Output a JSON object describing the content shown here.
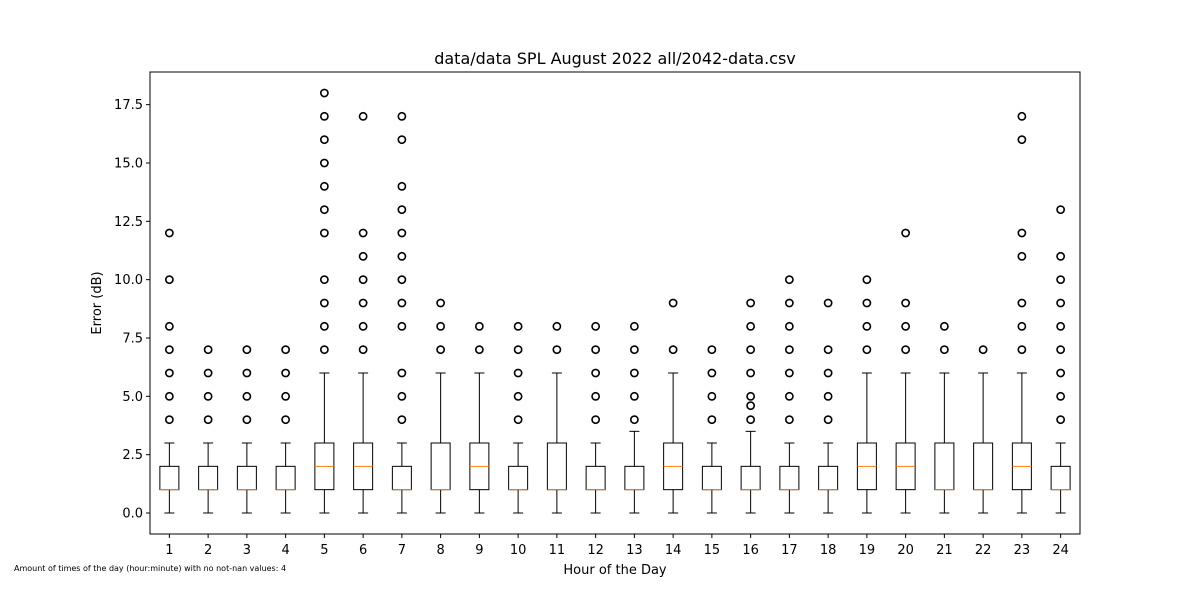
{
  "chart_data": {
    "type": "box",
    "title": "data/data SPL August 2022 all/2042-data.csv",
    "xlabel": "Hour of the Day",
    "ylabel": "Error (dB)",
    "ylim": [
      -0.9,
      18.9
    ],
    "yticks": [
      "0.0",
      "2.5",
      "5.0",
      "7.5",
      "10.0",
      "12.5",
      "15.0",
      "17.5"
    ],
    "categories": [
      "1",
      "2",
      "3",
      "4",
      "5",
      "6",
      "7",
      "8",
      "9",
      "10",
      "11",
      "12",
      "13",
      "14",
      "15",
      "16",
      "17",
      "18",
      "19",
      "20",
      "21",
      "22",
      "23",
      "24"
    ],
    "boxes": [
      {
        "hour": "1",
        "whislo": 0,
        "q1": 1,
        "med": 1,
        "q3": 2,
        "whishi": 3,
        "fliers": [
          4,
          5,
          6,
          7,
          8,
          10,
          12
        ]
      },
      {
        "hour": "2",
        "whislo": 0,
        "q1": 1,
        "med": 1,
        "q3": 2,
        "whishi": 3,
        "fliers": [
          4,
          5,
          6,
          7
        ]
      },
      {
        "hour": "3",
        "whislo": 0,
        "q1": 1,
        "med": 1,
        "q3": 2,
        "whishi": 3,
        "fliers": [
          4,
          5,
          6,
          7
        ]
      },
      {
        "hour": "4",
        "whislo": 0,
        "q1": 1,
        "med": 1,
        "q3": 2,
        "whishi": 3,
        "fliers": [
          4,
          5,
          6,
          7
        ]
      },
      {
        "hour": "5",
        "whislo": 0,
        "q1": 1,
        "med": 2,
        "q3": 3,
        "whishi": 6,
        "fliers": [
          7,
          8,
          9,
          10,
          12,
          13,
          14,
          15,
          16,
          17,
          18
        ]
      },
      {
        "hour": "6",
        "whislo": 0,
        "q1": 1,
        "med": 2,
        "q3": 3,
        "whishi": 6,
        "fliers": [
          7,
          8,
          9,
          10,
          11,
          12,
          17
        ]
      },
      {
        "hour": "7",
        "whislo": 0,
        "q1": 1,
        "med": 1,
        "q3": 2,
        "whishi": 3,
        "fliers": [
          4,
          5,
          6,
          8,
          9,
          10,
          11,
          12,
          13,
          14,
          16,
          17
        ]
      },
      {
        "hour": "8",
        "whislo": 0,
        "q1": 1,
        "med": 1,
        "q3": 3,
        "whishi": 6,
        "fliers": [
          7,
          8,
          9
        ]
      },
      {
        "hour": "9",
        "whislo": 0,
        "q1": 1,
        "med": 2,
        "q3": 3,
        "whishi": 6,
        "fliers": [
          7,
          8
        ]
      },
      {
        "hour": "10",
        "whislo": 0,
        "q1": 1,
        "med": 1,
        "q3": 2,
        "whishi": 3,
        "fliers": [
          4,
          5,
          6,
          7,
          8
        ]
      },
      {
        "hour": "11",
        "whislo": 0,
        "q1": 1,
        "med": 1,
        "q3": 3,
        "whishi": 6,
        "fliers": [
          7,
          8
        ]
      },
      {
        "hour": "12",
        "whislo": 0,
        "q1": 1,
        "med": 1,
        "q3": 2,
        "whishi": 3,
        "fliers": [
          4,
          5,
          6,
          7,
          8
        ]
      },
      {
        "hour": "13",
        "whislo": 0,
        "q1": 1,
        "med": 1,
        "q3": 2,
        "whishi": 3.5,
        "fliers": [
          4,
          5,
          6,
          7,
          8
        ]
      },
      {
        "hour": "14",
        "whislo": 0,
        "q1": 1,
        "med": 2,
        "q3": 3,
        "whishi": 6,
        "fliers": [
          7,
          9
        ]
      },
      {
        "hour": "15",
        "whislo": 0,
        "q1": 1,
        "med": 1,
        "q3": 2,
        "whishi": 3,
        "fliers": [
          4,
          5,
          6,
          7
        ]
      },
      {
        "hour": "16",
        "whislo": 0,
        "q1": 1,
        "med": 1,
        "q3": 2,
        "whishi": 3.5,
        "fliers": [
          4,
          4.6,
          5,
          6,
          7,
          8,
          9
        ]
      },
      {
        "hour": "17",
        "whislo": 0,
        "q1": 1,
        "med": 1,
        "q3": 2,
        "whishi": 3,
        "fliers": [
          4,
          5,
          6,
          7,
          8,
          9,
          10
        ]
      },
      {
        "hour": "18",
        "whislo": 0,
        "q1": 1,
        "med": 1,
        "q3": 2,
        "whishi": 3,
        "fliers": [
          4,
          5,
          6,
          7,
          9
        ]
      },
      {
        "hour": "19",
        "whislo": 0,
        "q1": 1,
        "med": 2,
        "q3": 3,
        "whishi": 6,
        "fliers": [
          7,
          8,
          9,
          10
        ]
      },
      {
        "hour": "20",
        "whislo": 0,
        "q1": 1,
        "med": 2,
        "q3": 3,
        "whishi": 6,
        "fliers": [
          7,
          8,
          9,
          12
        ]
      },
      {
        "hour": "21",
        "whislo": 0,
        "q1": 1,
        "med": 1,
        "q3": 3,
        "whishi": 6,
        "fliers": [
          7,
          8
        ]
      },
      {
        "hour": "22",
        "whislo": 0,
        "q1": 1,
        "med": 1,
        "q3": 3,
        "whishi": 6,
        "fliers": [
          7
        ]
      },
      {
        "hour": "23",
        "whislo": 0,
        "q1": 1,
        "med": 2,
        "q3": 3,
        "whishi": 6,
        "fliers": [
          7,
          8,
          9,
          11,
          12,
          16,
          17
        ]
      },
      {
        "hour": "24",
        "whislo": 0,
        "q1": 1,
        "med": 1,
        "q3": 2,
        "whishi": 3,
        "fliers": [
          4,
          5,
          6,
          7,
          8,
          9,
          10,
          11,
          13
        ]
      }
    ],
    "grid": false,
    "colors": {
      "box": "#000000",
      "median": "#ff7f0e",
      "flier": "#000000"
    }
  },
  "footnote": "Amount of times of the day (hour:minute) with no not-nan values: 4"
}
